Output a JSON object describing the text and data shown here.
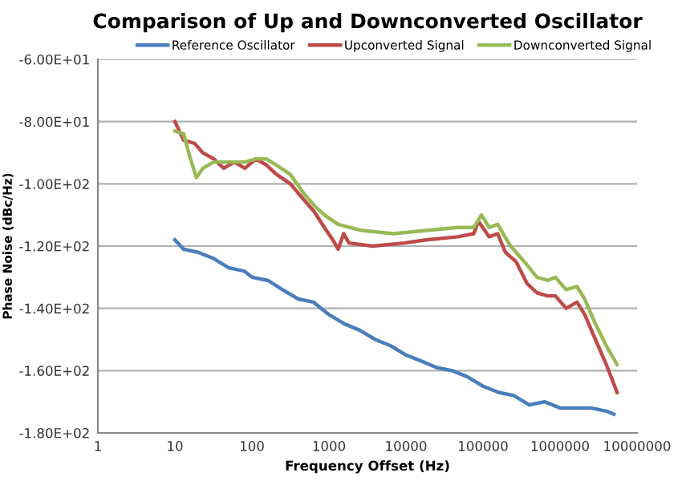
{
  "chart_data": {
    "type": "line",
    "title": "Comparison of Up and Downconverted Oscillator",
    "xlabel": "Frequency Offset (Hz)",
    "ylabel": "Phase Noise (dBc/Hz)",
    "log": "x",
    "grid": "y",
    "legend": "top",
    "marker": "none",
    "line_style": "solid",
    "xlim": [
      1,
      10000000
    ],
    "xticks": [
      1,
      10,
      100,
      1000,
      10000,
      100000,
      1000000,
      10000000
    ],
    "ylim": [
      -180,
      -60
    ],
    "yticks": [
      {
        "value": -180,
        "label": "-1.80E+02"
      },
      {
        "value": -160,
        "label": "-1.60E+02"
      },
      {
        "value": -140,
        "label": "-1.40E+02"
      },
      {
        "value": -120,
        "label": "-1.20E+02"
      },
      {
        "value": -100,
        "label": "-1.00E+02"
      },
      {
        "value": -80,
        "label": "-8.00E+01"
      },
      {
        "value": -60,
        "label": "-6.00E+01"
      }
    ],
    "series": [
      {
        "name": "Reference Oscillator",
        "color": "#4a7ebb",
        "x": [
          10,
          13,
          20,
          32,
          50,
          79,
          100,
          160,
          250,
          400,
          630,
          1000,
          1600,
          2500,
          4000,
          6300,
          10000,
          16000,
          25000,
          40000,
          63000,
          100000,
          160000,
          250000,
          400000,
          630000,
          1000000,
          1600000,
          2500000,
          4000000,
          5000000
        ],
        "values": [
          -118,
          -121,
          -122,
          -124,
          -127,
          -128,
          -130,
          -131,
          -134,
          -137,
          -138,
          -142,
          -145,
          -147,
          -150,
          -152,
          -155,
          -157,
          -159,
          -160,
          -162,
          -165,
          -167,
          -168,
          -171,
          -170,
          -172,
          -172,
          -172,
          -173,
          -174
        ]
      },
      {
        "name": "Upconverted Signal",
        "color": "#be4b48",
        "x": [
          10,
          13,
          18,
          23,
          32,
          43,
          59,
          81,
          112,
          155,
          209,
          316,
          468,
          646,
          871,
          1122,
          1318,
          1549,
          1820,
          3715,
          9550,
          18200,
          46800,
          75900,
          87100,
          120000,
          155000,
          195000,
          269000,
          372000,
          501000,
          692000,
          871000,
          1200000,
          1660000,
          2090000,
          2880000,
          3980000,
          5500000
        ],
        "values": [
          -80,
          -86,
          -87,
          -90,
          -92,
          -95,
          -93,
          -95,
          -92,
          -94,
          -97,
          -100,
          -105,
          -109,
          -114,
          -118,
          -121,
          -116,
          -119,
          -120,
          -119,
          -118,
          -117,
          -116,
          -112,
          -117,
          -116,
          -122,
          -125,
          -132,
          -135,
          -136,
          -136,
          -140,
          -138,
          -142,
          -150,
          -158,
          -167
        ]
      },
      {
        "name": "Downconverted Signal",
        "color": "#98b954",
        "x": [
          10,
          13,
          15.5,
          19,
          23,
          32,
          43,
          59,
          81,
          112,
          155,
          209,
          316,
          468,
          646,
          871,
          1318,
          2692,
          6918,
          18200,
          46800,
          75900,
          95500,
          120000,
          155000,
          182000,
          229000,
          372000,
          501000,
          692000,
          871000,
          1200000,
          1660000,
          2090000,
          2880000,
          3980000,
          5500000
        ],
        "values": [
          -83,
          -84,
          -91,
          -98,
          -95,
          -93,
          -93,
          -93,
          -93,
          -92,
          -92,
          -94,
          -97,
          -103,
          -107,
          -110,
          -113,
          -115,
          -116,
          -115,
          -114,
          -114,
          -110,
          -114,
          -113,
          -116,
          -120,
          -126,
          -130,
          -131,
          -130,
          -134,
          -133,
          -137,
          -145,
          -152,
          -158
        ]
      }
    ]
  }
}
